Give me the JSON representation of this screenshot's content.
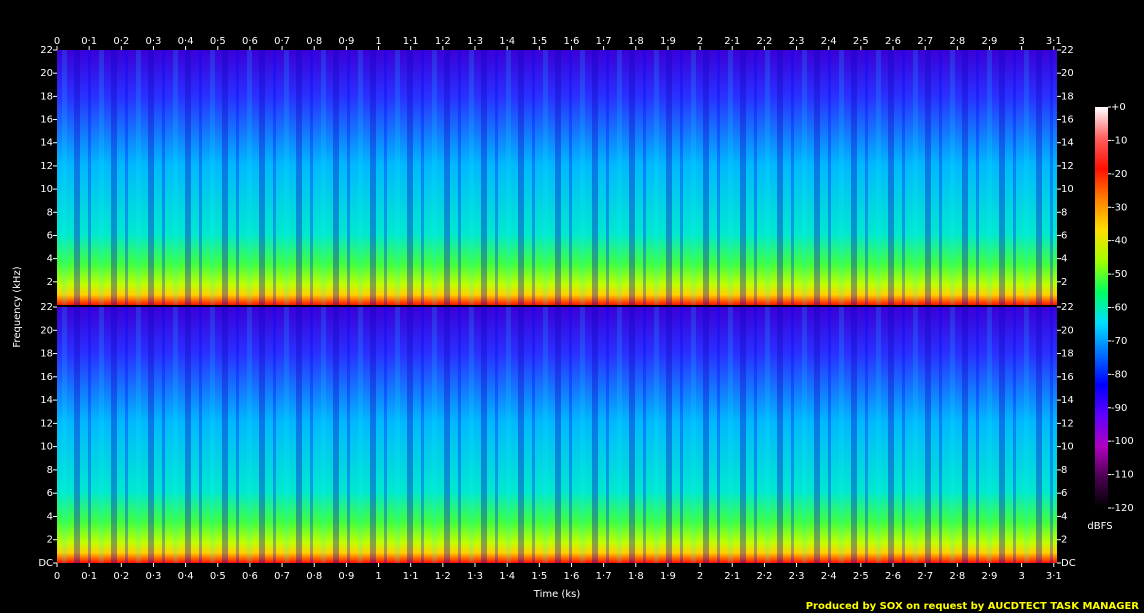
{
  "chart_data": [
    {
      "type": "spectrogram",
      "x_label": "Time (ks)",
      "y_label": "Frequency (kHz)",
      "xlim": [
        0,
        3.11
      ],
      "xticks": [
        0,
        {
          "value": 0.1,
          "label": "0·1"
        },
        {
          "value": 0.2,
          "label": "0·2"
        },
        {
          "value": 0.3,
          "label": "0·3"
        },
        {
          "value": 0.4,
          "label": "0·4"
        },
        {
          "value": 0.5,
          "label": "0·5"
        },
        {
          "value": 0.6,
          "label": "0·6"
        },
        {
          "value": 0.7,
          "label": "0·7"
        },
        {
          "value": 0.8,
          "label": "0·8"
        },
        {
          "value": 0.9,
          "label": "0·9"
        },
        1,
        {
          "value": 1.1,
          "label": "1·1"
        },
        {
          "value": 1.2,
          "label": "1·2"
        },
        {
          "value": 1.3,
          "label": "1·3"
        },
        {
          "value": 1.4,
          "label": "1·4"
        },
        {
          "value": 1.5,
          "label": "1·5"
        },
        {
          "value": 1.6,
          "label": "1·6"
        },
        {
          "value": 1.7,
          "label": "1·7"
        },
        {
          "value": 1.8,
          "label": "1·8"
        },
        {
          "value": 1.9,
          "label": "1·9"
        },
        2,
        {
          "value": 2.1,
          "label": "2·1"
        },
        {
          "value": 2.2,
          "label": "2·2"
        },
        {
          "value": 2.3,
          "label": "2·3"
        },
        {
          "value": 2.4,
          "label": "2·4"
        },
        {
          "value": 2.5,
          "label": "2·5"
        },
        {
          "value": 2.6,
          "label": "2·6"
        },
        {
          "value": 2.7,
          "label": "2·7"
        },
        {
          "value": 2.8,
          "label": "2·8"
        },
        {
          "value": 2.9,
          "label": "2·9"
        },
        3,
        {
          "value": 3.1,
          "label": "3·1"
        }
      ],
      "ylim": [
        0,
        22
      ],
      "yticks": [
        2,
        4,
        6,
        8,
        10,
        12,
        14,
        16,
        18,
        20,
        22
      ]
    },
    {
      "type": "spectrogram",
      "ylim": [
        0,
        22
      ],
      "yticks": [
        {
          "value": 0,
          "label": "DC"
        },
        2,
        4,
        6,
        8,
        10,
        12,
        14,
        16,
        18,
        20,
        22
      ]
    }
  ],
  "colorbar": {
    "label": "dBFS",
    "lim": [
      -120,
      0
    ],
    "ticks": [
      {
        "value": 0,
        "label": "+0"
      },
      -10,
      -20,
      -30,
      -40,
      -50,
      -60,
      -70,
      -80,
      -90,
      -100,
      -110,
      -120
    ],
    "colors": [
      "#000000",
      "#4a0050",
      "#b000c0",
      "#6000ff",
      "#0000ff",
      "#0070ff",
      "#00e0ff",
      "#00ff60",
      "#a0ff00",
      "#ffe000",
      "#ff8000",
      "#ff1000",
      "#ff6060",
      "#ffffff"
    ]
  },
  "footer": "Produced by SOX on request by AUCDTECT TASK MANAGER"
}
